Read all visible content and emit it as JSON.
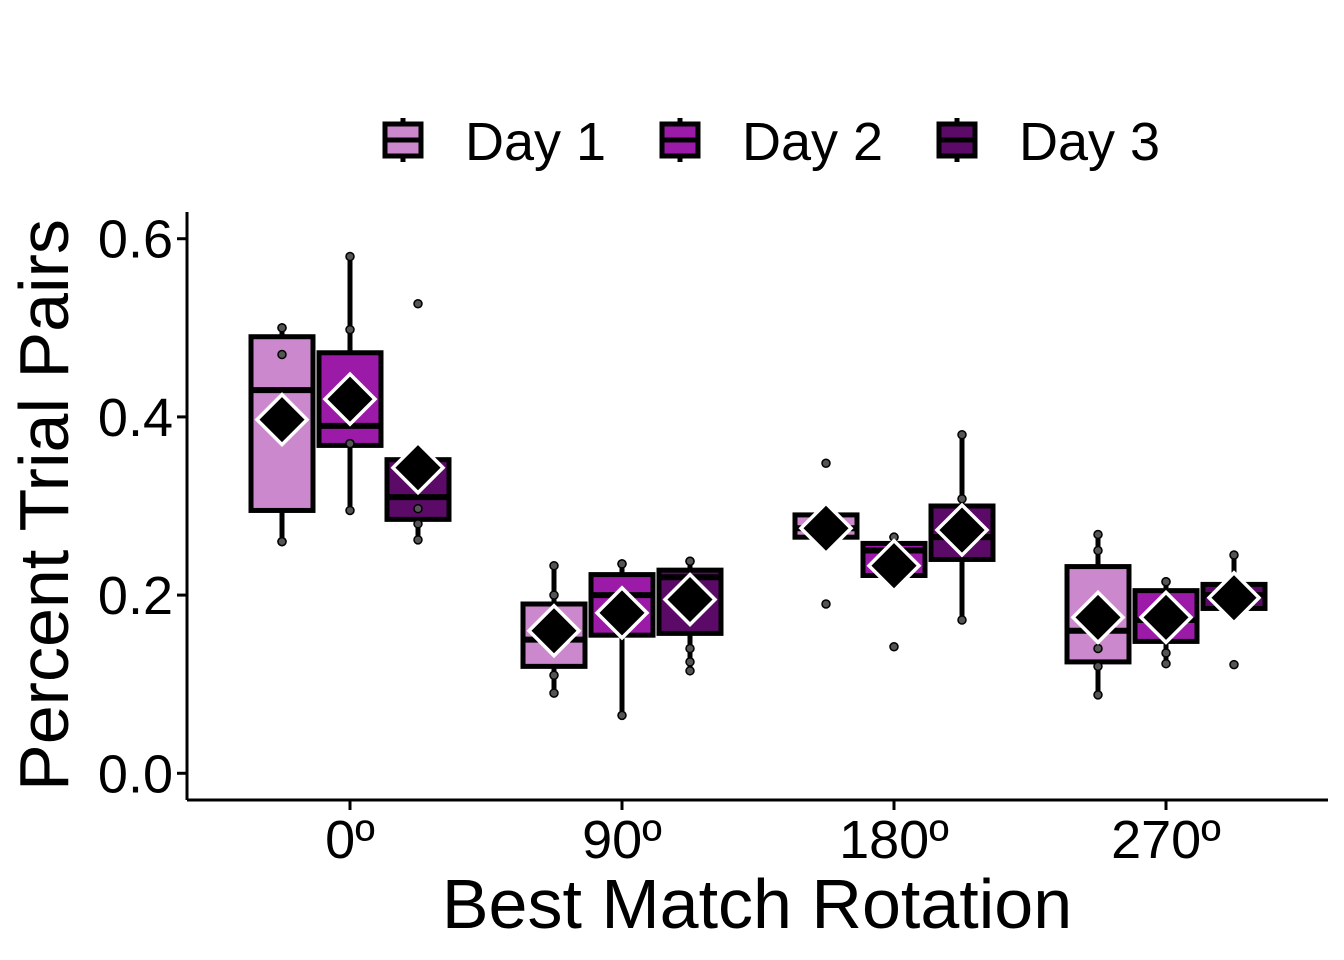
{
  "chart_data": {
    "type": "box",
    "xlabel": "Best Match Rotation",
    "ylabel": "Percent Trial Pairs",
    "categories": [
      "0º",
      "90º",
      "180º",
      "270º"
    ],
    "yticks": [
      0.0,
      0.2,
      0.4,
      0.6
    ],
    "ytick_labels": [
      "0.0",
      "0.2",
      "0.4",
      "0.6"
    ],
    "ylim": [
      -0.03,
      0.63
    ],
    "grid": false,
    "legend_position": "top",
    "series": [
      {
        "name": "Day 1",
        "color": "#cc88cc",
        "boxes": [
          {
            "q1": 0.295,
            "median": 0.43,
            "q3": 0.49,
            "whisker_low": 0.26,
            "whisker_high": 0.5,
            "mean": 0.397,
            "points": [
              0.26,
              0.26,
              0.47,
              0.5,
              0.5
            ]
          },
          {
            "q1": 0.12,
            "median": 0.15,
            "q3": 0.19,
            "whisker_low": 0.09,
            "whisker_high": 0.233,
            "mean": 0.16,
            "points": [
              0.09,
              0.11,
              0.2,
              0.233
            ]
          },
          {
            "q1": 0.265,
            "median": 0.275,
            "q3": 0.29,
            "whisker_low": 0.265,
            "whisker_high": 0.29,
            "mean": 0.275,
            "points": [
              0.19,
              0.348
            ]
          },
          {
            "q1": 0.125,
            "median": 0.16,
            "q3": 0.232,
            "whisker_low": 0.088,
            "whisker_high": 0.268,
            "mean": 0.175,
            "points": [
              0.088,
              0.12,
              0.14,
              0.25,
              0.268
            ]
          }
        ]
      },
      {
        "name": "Day 2",
        "color": "#9b1aa8",
        "boxes": [
          {
            "q1": 0.368,
            "median": 0.39,
            "q3": 0.472,
            "whisker_low": 0.295,
            "whisker_high": 0.58,
            "mean": 0.42,
            "points": [
              0.295,
              0.37,
              0.37,
              0.498,
              0.58
            ]
          },
          {
            "q1": 0.155,
            "median": 0.2,
            "q3": 0.223,
            "whisker_low": 0.065,
            "whisker_high": 0.235,
            "mean": 0.18,
            "points": [
              0.065,
              0.235,
              0.235
            ]
          },
          {
            "q1": 0.222,
            "median": 0.25,
            "q3": 0.258,
            "whisker_low": 0.222,
            "whisker_high": 0.268,
            "mean": 0.233,
            "points": [
              0.142,
              0.265,
              0.265
            ]
          },
          {
            "q1": 0.148,
            "median": 0.172,
            "q3": 0.205,
            "whisker_low": 0.123,
            "whisker_high": 0.215,
            "mean": 0.175,
            "points": [
              0.123,
              0.135,
              0.215,
              0.215
            ]
          }
        ]
      },
      {
        "name": "Day 3",
        "color": "#5c0a68",
        "boxes": [
          {
            "q1": 0.285,
            "median": 0.31,
            "q3": 0.352,
            "whisker_low": 0.262,
            "whisker_high": 0.352,
            "mean": 0.343,
            "points": [
              0.262,
              0.28,
              0.297,
              0.527
            ]
          },
          {
            "q1": 0.157,
            "median": 0.22,
            "q3": 0.228,
            "whisker_low": 0.115,
            "whisker_high": 0.238,
            "mean": 0.195,
            "points": [
              0.115,
              0.125,
              0.14,
              0.238,
              0.238
            ]
          },
          {
            "q1": 0.24,
            "median": 0.265,
            "q3": 0.3,
            "whisker_low": 0.172,
            "whisker_high": 0.38,
            "mean": 0.273,
            "points": [
              0.172,
              0.308,
              0.38
            ]
          },
          {
            "q1": 0.185,
            "median": 0.2,
            "q3": 0.212,
            "whisker_low": 0.185,
            "whisker_high": 0.245,
            "mean": 0.197,
            "points": [
              0.122,
              0.245
            ]
          }
        ]
      }
    ]
  }
}
